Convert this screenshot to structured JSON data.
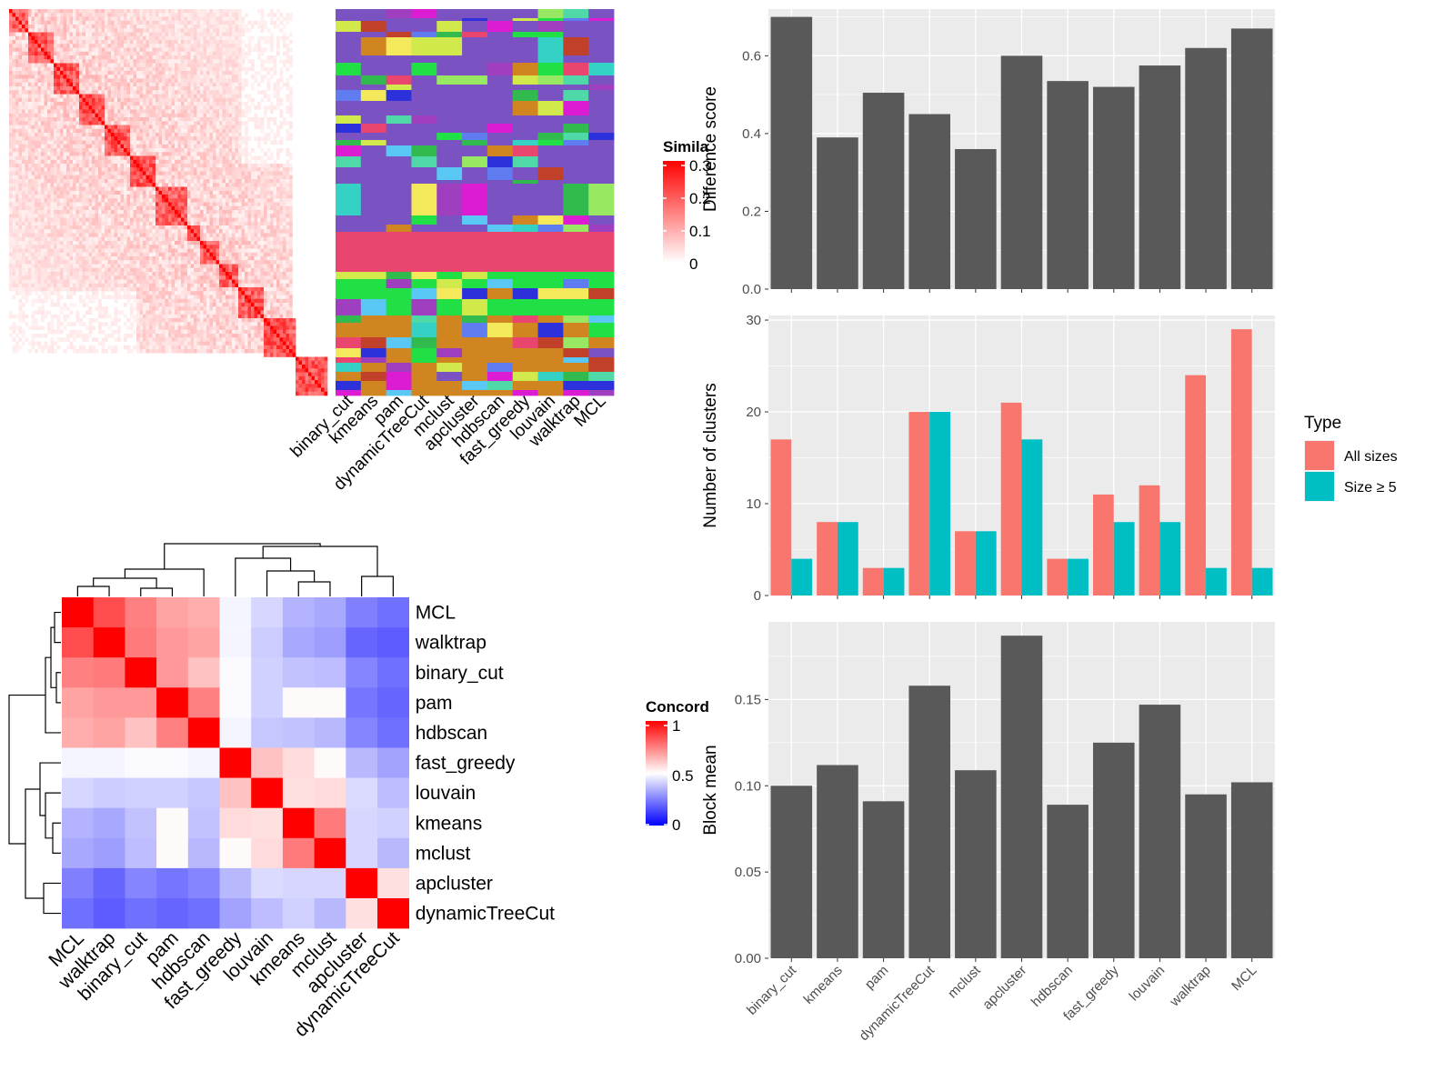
{
  "colors": {
    "panel_bg": "#ebebeb",
    "grid": "#ffffff",
    "bar_gray": "#595959",
    "all_sizes": "#f8766d",
    "size_ge5": "#00bfc4",
    "sim_high": "#ff0000",
    "conc_high": "#ff0000",
    "conc_mid": "#ffffff",
    "conc_low": "#0000ff"
  },
  "similarity_legend": {
    "title": "Simila",
    "ticks": [
      "0.3",
      "0.2",
      "0.1",
      "0"
    ]
  },
  "membership_columns": [
    "binary_cut",
    "kmeans",
    "pam",
    "dynamicTreeCut",
    "mclust",
    "apcluster",
    "hdbscan",
    "fast_greedy",
    "louvain",
    "walktrap",
    "MCL"
  ],
  "concordance": {
    "legend_title": "Concord",
    "legend_ticks": [
      "1",
      "0.5",
      "0"
    ],
    "order": [
      "MCL",
      "walktrap",
      "binary_cut",
      "pam",
      "hdbscan",
      "fast_greedy",
      "louvain",
      "kmeans",
      "mclust",
      "apcluster",
      "dynamicTreeCut"
    ],
    "matrix": [
      [
        1.0,
        0.85,
        0.75,
        0.68,
        0.66,
        0.48,
        0.42,
        0.35,
        0.33,
        0.25,
        0.22
      ],
      [
        0.85,
        1.0,
        0.76,
        0.7,
        0.68,
        0.48,
        0.4,
        0.33,
        0.31,
        0.2,
        0.18
      ],
      [
        0.75,
        0.76,
        1.0,
        0.7,
        0.62,
        0.49,
        0.41,
        0.38,
        0.37,
        0.26,
        0.22
      ],
      [
        0.68,
        0.7,
        0.7,
        1.0,
        0.75,
        0.49,
        0.41,
        0.51,
        0.51,
        0.23,
        0.2
      ],
      [
        0.66,
        0.68,
        0.62,
        0.75,
        1.0,
        0.48,
        0.39,
        0.38,
        0.36,
        0.26,
        0.22
      ],
      [
        0.48,
        0.48,
        0.49,
        0.49,
        0.48,
        1.0,
        0.62,
        0.57,
        0.51,
        0.36,
        0.32
      ],
      [
        0.42,
        0.4,
        0.41,
        0.41,
        0.39,
        0.62,
        1.0,
        0.56,
        0.57,
        0.43,
        0.37
      ],
      [
        0.35,
        0.33,
        0.38,
        0.51,
        0.38,
        0.57,
        0.56,
        1.0,
        0.76,
        0.42,
        0.41
      ],
      [
        0.33,
        0.31,
        0.37,
        0.51,
        0.36,
        0.51,
        0.57,
        0.76,
        1.0,
        0.42,
        0.36
      ],
      [
        0.25,
        0.2,
        0.26,
        0.23,
        0.26,
        0.36,
        0.43,
        0.42,
        0.42,
        1.0,
        0.56
      ],
      [
        0.22,
        0.18,
        0.22,
        0.2,
        0.22,
        0.32,
        0.37,
        0.41,
        0.36,
        0.56,
        1.0
      ]
    ]
  },
  "chart_data": [
    {
      "type": "bar",
      "categories": [
        "binary_cut",
        "kmeans",
        "pam",
        "dynamicTreeCut",
        "mclust",
        "apcluster",
        "hdbscan",
        "fast_greedy",
        "louvain",
        "walktrap",
        "MCL"
      ],
      "values": [
        0.7,
        0.39,
        0.505,
        0.45,
        0.36,
        0.6,
        0.535,
        0.52,
        0.575,
        0.62,
        0.67
      ],
      "ylabel": "Difference score",
      "ylim": [
        0,
        0.72
      ],
      "yticks": [
        "0.0",
        "0.2",
        "0.4",
        "0.6"
      ],
      "grid": true
    },
    {
      "type": "bar",
      "categories": [
        "binary_cut",
        "kmeans",
        "pam",
        "dynamicTreeCut",
        "mclust",
        "apcluster",
        "hdbscan",
        "fast_greedy",
        "louvain",
        "walktrap",
        "MCL"
      ],
      "series": [
        {
          "name": "All sizes",
          "values": [
            17,
            8,
            3,
            20,
            7,
            21,
            4,
            11,
            12,
            24,
            29
          ]
        },
        {
          "name": "Size ≥ 5",
          "values": [
            4,
            8,
            3,
            20,
            7,
            17,
            4,
            8,
            8,
            3,
            3
          ]
        }
      ],
      "ylabel": "Number of clusters",
      "ylim": [
        0,
        30.5
      ],
      "yticks": [
        "0",
        "10",
        "20",
        "30"
      ],
      "legend_title": "Type",
      "legend_position": "right",
      "grid": true
    },
    {
      "type": "bar",
      "categories": [
        "binary_cut",
        "kmeans",
        "pam",
        "dynamicTreeCut",
        "mclust",
        "apcluster",
        "hdbscan",
        "fast_greedy",
        "louvain",
        "walktrap",
        "MCL"
      ],
      "values": [
        0.1,
        0.112,
        0.091,
        0.158,
        0.109,
        0.187,
        0.089,
        0.125,
        0.147,
        0.095,
        0.102
      ],
      "ylabel": "Block mean",
      "ylim": [
        0,
        0.195
      ],
      "yticks": [
        "0.00",
        "0.05",
        "0.10",
        "0.15"
      ],
      "grid": true
    }
  ]
}
